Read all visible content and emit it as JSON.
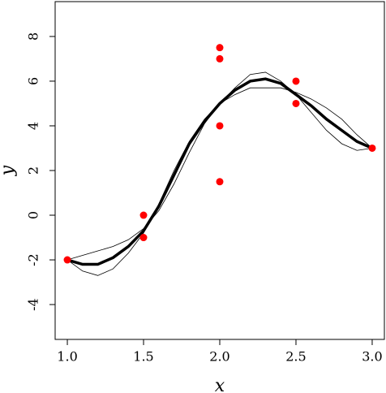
{
  "chart_data": {
    "type": "scatter",
    "x_label": "x",
    "y_label": "y",
    "x": [
      1,
      1.5,
      1.5,
      2,
      2,
      2,
      2,
      2.5,
      2.5,
      3
    ],
    "values": [
      -2,
      0,
      -1,
      1.5,
      4,
      7,
      7.5,
      5,
      6,
      3
    ],
    "color": "#ff0000",
    "lines": [
      {
        "color": "#000000",
        "x": [
          1,
          1.1,
          1.2,
          1.3,
          1.4,
          1.5,
          1.6,
          1.7,
          1.8,
          1.9,
          2,
          2.1,
          2.2,
          2.3,
          2.4,
          2.5,
          2.6,
          2.7,
          2.8,
          2.9,
          3
        ],
        "values": [
          -2,
          -2.2,
          -2.2,
          -1.9,
          -1.4,
          -0.7,
          0.4,
          1.8,
          3.2,
          4.2,
          5,
          5.6,
          6,
          6.1,
          5.9,
          5.4,
          4.9,
          4.3,
          3.8,
          3.3,
          3
        ]
      },
      {
        "color": "#000000",
        "x": [
          1,
          1.1,
          1.2,
          1.3,
          1.4,
          1.5,
          1.6,
          1.7,
          1.8,
          1.9,
          2,
          2.1,
          2.2,
          2.3,
          2.4,
          2.5,
          2.6,
          2.7,
          2.8,
          2.9,
          3
        ],
        "values": [
          -2,
          -2.5,
          -2.7,
          -2.4,
          -1.7,
          -0.8,
          0.5,
          2,
          3.3,
          4.3,
          5,
          5.7,
          6.3,
          6.4,
          6,
          5.4,
          4.6,
          3.8,
          3.2,
          2.9,
          3
        ]
      },
      {
        "color": "#000000",
        "x": [
          1,
          1.1,
          1.2,
          1.3,
          1.4,
          1.5,
          1.6,
          1.7,
          1.8,
          1.9,
          2,
          2.1,
          2.2,
          2.3,
          2.4,
          2.5,
          2.6,
          2.7,
          2.8,
          2.9,
          3
        ],
        "values": [
          -2,
          -1.8,
          -1.6,
          -1.4,
          -1.1,
          -0.6,
          0.2,
          1.4,
          2.8,
          4.1,
          5,
          5.4,
          5.7,
          5.7,
          5.7,
          5.5,
          5.2,
          4.8,
          4.3,
          3.6,
          3
        ]
      }
    ],
    "xlim": [
      0.92,
      3.08
    ],
    "xticks": [
      {
        "value": 1,
        "label": "1.0"
      },
      {
        "value": 1.5,
        "label": "1.5"
      },
      {
        "value": 2,
        "label": "2.0"
      },
      {
        "value": 2.5,
        "label": "2.5"
      },
      {
        "value": 3,
        "label": "3.0"
      }
    ],
    "ylim": [
      -5.56,
      9.56
    ],
    "yticks": [
      -4,
      -2,
      0,
      2,
      4,
      6,
      8
    ]
  }
}
